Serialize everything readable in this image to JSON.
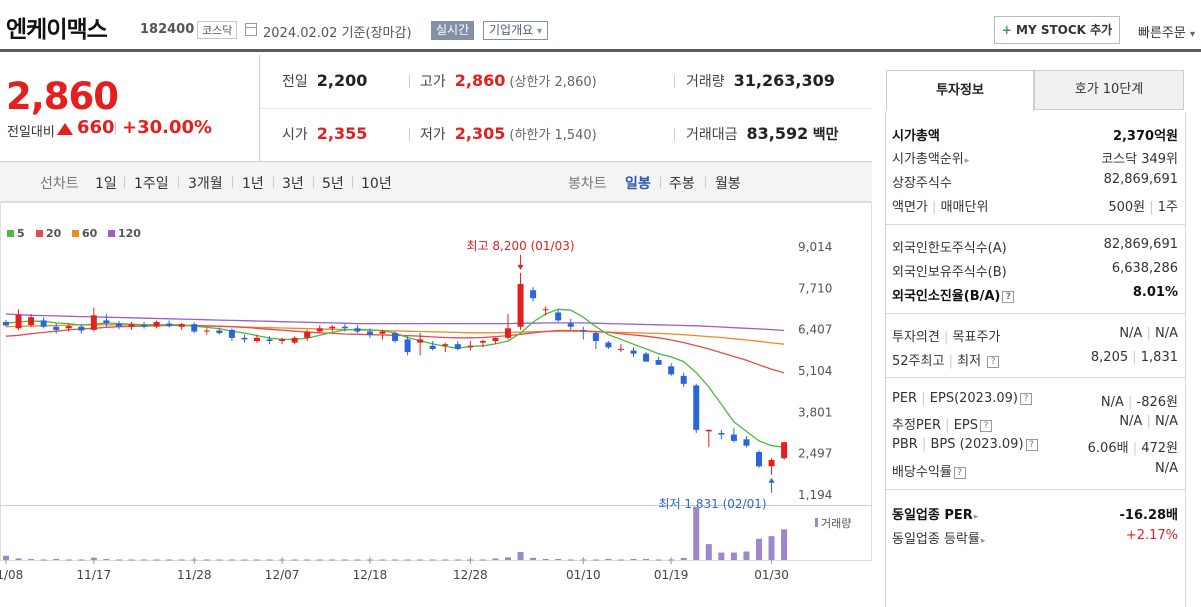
{
  "header": {
    "name": "엔케이맥스",
    "code": "182400",
    "market": "코스닥",
    "date": "2024.02.02",
    "basis": "기준(장마감)",
    "realtime": "실시간",
    "company": "기업개요",
    "company_arrow": "▾",
    "mystock_plus": "+",
    "mystock": "MY STOCK 추가",
    "quick": "빠른주문",
    "quick_arrow": "▾"
  },
  "price": {
    "current": "2,860",
    "change_label": "전일대비",
    "change": "660",
    "change_pct": "+30.00%",
    "prev_label": "전일",
    "prev": "2,200",
    "open_label": "시가",
    "open": "2,355",
    "high_label": "고가",
    "high": "2,860",
    "high_extra": "(상한가 2,860)",
    "low_label": "저가",
    "low": "2,305",
    "low_extra": "(하한가 1,540)",
    "volume_label": "거래량",
    "volume": "31,263,309",
    "amount_label": "거래대금",
    "amount": "83,592",
    "amount_unit": "백만"
  },
  "periods": {
    "line_label": "선차트",
    "line": [
      "1일",
      "1주일",
      "3개월",
      "1년",
      "3년",
      "5년",
      "10년"
    ],
    "candle_label": "봉차트",
    "candle": [
      "일봉",
      "주봉",
      "월봉"
    ],
    "active_candle": "일봉"
  },
  "chart_data": {
    "type": "candlestick",
    "ma_legend": [
      {
        "name": "5",
        "color": "#4cba3c"
      },
      {
        "name": "20",
        "color": "#e84c4c"
      },
      {
        "name": "60",
        "color": "#f08a24"
      },
      {
        "name": "120",
        "color": "#9b5fc8"
      }
    ],
    "yticks": [
      "9,014",
      "7,710",
      "6,407",
      "5,104",
      "3,801",
      "2,497",
      "1,194"
    ],
    "ylim": [
      1194,
      9014
    ],
    "xticks": [
      "11/08",
      "11/17",
      "11/28",
      "12/07",
      "12/18",
      "12/28",
      "01/10",
      "01/19",
      "01/30"
    ],
    "xtick_index": [
      0,
      7,
      15,
      22,
      29,
      37,
      46,
      53,
      61
    ],
    "high_note": "최고 8,200 (01/03)",
    "low_note": "최저 1,831 (02/01)",
    "volume_label": "거래량",
    "candles": [
      [
        6650,
        6720,
        6500,
        6540
      ],
      [
        6450,
        7050,
        6400,
        6880
      ],
      [
        6550,
        6900,
        6500,
        6800
      ],
      [
        6700,
        6800,
        6450,
        6500
      ],
      [
        6500,
        6600,
        6280,
        6400
      ],
      [
        6450,
        6580,
        6350,
        6520
      ],
      [
        6500,
        6560,
        6280,
        6380
      ],
      [
        6400,
        7100,
        6350,
        6860
      ],
      [
        6700,
        6900,
        6500,
        6600
      ],
      [
        6600,
        6680,
        6420,
        6500
      ],
      [
        6500,
        6650,
        6400,
        6580
      ],
      [
        6560,
        6650,
        6440,
        6500
      ],
      [
        6500,
        6700,
        6450,
        6650
      ],
      [
        6600,
        6700,
        6480,
        6520
      ],
      [
        6500,
        6620,
        6400,
        6580
      ],
      [
        6580,
        6640,
        6300,
        6350
      ],
      [
        6350,
        6450,
        6250,
        6380
      ],
      [
        6380,
        6480,
        6260,
        6300
      ],
      [
        6400,
        6450,
        6050,
        6150
      ],
      [
        6150,
        6250,
        6000,
        6100
      ],
      [
        6050,
        6250,
        6000,
        6150
      ],
      [
        6100,
        6200,
        5950,
        6050
      ],
      [
        6050,
        6150,
        5950,
        6100
      ],
      [
        6000,
        6200,
        5950,
        6150
      ],
      [
        6150,
        6400,
        6050,
        6350
      ],
      [
        6350,
        6550,
        6300,
        6450
      ],
      [
        6450,
        6550,
        6350,
        6500
      ],
      [
        6500,
        6580,
        6350,
        6450
      ],
      [
        6450,
        6550,
        6300,
        6350
      ],
      [
        6350,
        6450,
        6150,
        6250
      ],
      [
        6280,
        6400,
        6100,
        6350
      ],
      [
        6300,
        6350,
        6000,
        6050
      ],
      [
        6100,
        6200,
        5600,
        5700
      ],
      [
        6000,
        6300,
        5600,
        6100
      ],
      [
        5900,
        6050,
        5750,
        5800
      ],
      [
        5900,
        6000,
        5700,
        5950
      ],
      [
        5950,
        6050,
        5750,
        5800
      ],
      [
        5850,
        6050,
        5750,
        5900
      ],
      [
        6000,
        6100,
        5850,
        6050
      ],
      [
        6050,
        6150,
        5950,
        6150
      ],
      [
        6150,
        6900,
        6100,
        6450
      ],
      [
        6500,
        8200,
        6400,
        7850
      ],
      [
        7650,
        7750,
        7300,
        7400
      ],
      [
        7050,
        7150,
        6850,
        7050
      ],
      [
        6950,
        7050,
        6650,
        6700
      ],
      [
        6600,
        6750,
        6400,
        6500
      ],
      [
        6400,
        6500,
        6100,
        6350
      ],
      [
        6300,
        6350,
        5800,
        6050
      ],
      [
        6000,
        6050,
        5800,
        5850
      ],
      [
        5800,
        5950,
        5700,
        5800
      ],
      [
        5750,
        5850,
        5550,
        5650
      ],
      [
        5650,
        5700,
        5400,
        5400
      ],
      [
        5450,
        5550,
        5300,
        5300
      ],
      [
        5250,
        5350,
        4950,
        5000
      ],
      [
        4950,
        5050,
        4600,
        4700
      ],
      [
        4650,
        4700,
        3150,
        3250
      ],
      [
        3200,
        3250,
        2700,
        3250
      ],
      [
        3150,
        3250,
        2950,
        3100
      ],
      [
        3100,
        3300,
        2850,
        2900
      ],
      [
        2950,
        3050,
        2700,
        2750
      ],
      [
        2550,
        2600,
        2050,
        2100
      ],
      [
        2100,
        2350,
        1831,
        2300
      ],
      [
        2355,
        2860,
        2305,
        2860
      ]
    ],
    "ma5": [
      6610,
      6650,
      6680,
      6670,
      6620,
      6600,
      6550,
      6580,
      6620,
      6600,
      6580,
      6560,
      6560,
      6560,
      6560,
      6520,
      6480,
      6440,
      6360,
      6300,
      6220,
      6140,
      6100,
      6100,
      6140,
      6230,
      6320,
      6400,
      6420,
      6400,
      6380,
      6300,
      6160,
      6060,
      5960,
      5880,
      5820,
      5880,
      5900,
      5960,
      6050,
      6300,
      6650,
      6900,
      7050,
      7020,
      6800,
      6500,
      6250,
      6100,
      5950,
      5800,
      5650,
      5550,
      5400,
      5050,
      4600,
      4050,
      3500,
      3200,
      2900,
      2750,
      2700
    ],
    "ma20": [
      6200,
      6230,
      6280,
      6320,
      6360,
      6400,
      6430,
      6450,
      6480,
      6500,
      6510,
      6520,
      6530,
      6540,
      6540,
      6540,
      6530,
      6520,
      6500,
      6480,
      6450,
      6420,
      6390,
      6360,
      6330,
      6310,
      6290,
      6270,
      6260,
      6250,
      6240,
      6230,
      6220,
      6200,
      6180,
      6160,
      6150,
      6150,
      6160,
      6190,
      6220,
      6260,
      6310,
      6350,
      6380,
      6380,
      6370,
      6350,
      6320,
      6280,
      6240,
      6200,
      6150,
      6080,
      6000,
      5900,
      5800,
      5680,
      5560,
      5440,
      5300,
      5160,
      5050
    ],
    "ma60": [
      6500,
      6510,
      6520,
      6530,
      6540,
      6550,
      6560,
      6560,
      6560,
      6560,
      6560,
      6560,
      6550,
      6550,
      6540,
      6530,
      6520,
      6510,
      6500,
      6490,
      6480,
      6470,
      6460,
      6450,
      6440,
      6430,
      6420,
      6410,
      6400,
      6390,
      6380,
      6370,
      6360,
      6350,
      6340,
      6330,
      6320,
      6310,
      6310,
      6310,
      6320,
      6330,
      6340,
      6350,
      6360,
      6360,
      6350,
      6340,
      6330,
      6320,
      6310,
      6300,
      6290,
      6270,
      6250,
      6220,
      6190,
      6160,
      6120,
      6080,
      6040,
      5990,
      5950
    ],
    "ma120": [
      6900,
      6880,
      6860,
      6850,
      6840,
      6830,
      6820,
      6810,
      6800,
      6790,
      6780,
      6770,
      6760,
      6750,
      6740,
      6730,
      6720,
      6710,
      6700,
      6690,
      6680,
      6670,
      6660,
      6650,
      6640,
      6630,
      6620,
      6610,
      6600,
      6600,
      6600,
      6600,
      6600,
      6600,
      6600,
      6600,
      6600,
      6600,
      6600,
      6600,
      6600,
      6610,
      6610,
      6620,
      6620,
      6620,
      6620,
      6610,
      6600,
      6590,
      6580,
      6570,
      6560,
      6550,
      6540,
      6530,
      6510,
      6490,
      6470,
      6450,
      6430,
      6410,
      6380
    ],
    "volume": [
      8,
      3,
      2,
      1,
      2,
      1,
      1,
      4,
      2,
      1,
      1,
      1,
      1,
      1,
      1,
      1,
      1,
      1,
      1,
      1,
      1,
      1,
      1,
      1,
      1,
      1,
      1,
      1,
      1,
      1,
      1,
      1,
      1,
      1,
      1,
      1,
      1,
      1,
      1,
      3,
      5,
      15,
      4,
      2,
      2,
      1,
      1,
      1,
      2,
      1,
      2,
      2,
      1,
      1,
      4,
      100,
      30,
      14,
      14,
      16,
      40,
      45,
      58
    ]
  },
  "right_panel": {
    "tab_info": "투자정보",
    "tab_hoga": "호가 10단계",
    "mktcap_label": "시가총액",
    "mktcap": "2,370억원",
    "mktcap_rank_label": "시가총액순위",
    "mktcap_rank": "코스닥 349위",
    "shares_label": "상장주식수",
    "shares": "82,869,691",
    "face_label": "액면가",
    "face_sep": "매매단위",
    "face": "500원",
    "face_unit": "1주",
    "foreign_limit_label": "외국인한도주식수(A)",
    "foreign_limit": "82,869,691",
    "foreign_hold_label": "외국인보유주식수(B)",
    "foreign_hold": "6,638,286",
    "foreign_ratio_label": "외국인소진율(B/A)",
    "foreign_ratio": "8.01%",
    "opinion_label": "투자의견",
    "opinion_sep": "목표주가",
    "opinion": "N/A",
    "target": "N/A",
    "w52_label": "52주최고",
    "w52_sep": "최저",
    "w52_high": "8,205",
    "w52_low": "1,831",
    "per_label": "PER",
    "per_sep": "EPS(2023.09)",
    "per": "N/A",
    "eps": "-826원",
    "eper_label": "추정PER",
    "eper_sep": "EPS",
    "eper": "N/A",
    "eeps": "N/A",
    "pbr_label": "PBR",
    "pbr_sep": "BPS (2023.09)",
    "pbr": "6.06배",
    "bps": "472원",
    "div_label": "배당수익률",
    "div": "N/A",
    "ind_per_label": "동일업종 PER",
    "ind_per": "-16.28배",
    "ind_chg_label": "동일업종 등락률",
    "ind_chg": "+2.17%"
  }
}
